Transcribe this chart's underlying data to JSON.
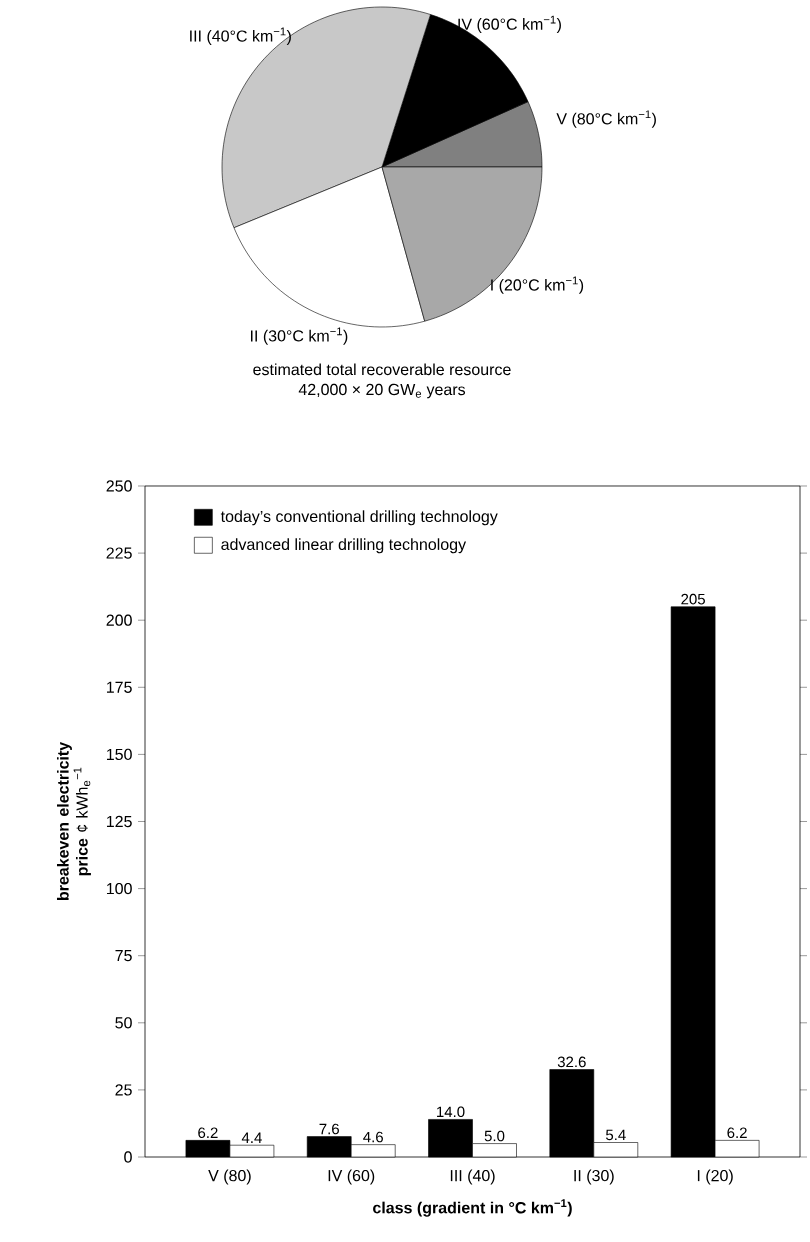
{
  "chart_data": [
    {
      "type": "pie",
      "title": "estimated total recoverable resource",
      "subtitle": "42,000 × 20 GW$_{e}$ years",
      "categories": [
        "V (80°C km$^{−1}$)",
        "IV (60°C km$^{−1}$)",
        "III (40°C km$^{−1}$)",
        "II (30°C km$^{−1}$)",
        "I (20°C km$^{−1}$)"
      ],
      "values": [
        6.7,
        13.4,
        36.1,
        23.1,
        20.7
      ],
      "colors": [
        "#808080",
        "#000000",
        "#c8c8c8",
        "#ffffff",
        "#a8a8a8"
      ]
    },
    {
      "type": "bar",
      "xlabel": "class (gradient in °C  km$^{−1}$)",
      "ylabel": "**breakeven electricity price** ¢ kWh$_{e}$$^{−1}$",
      "categories": [
        "V (80)",
        "IV (60)",
        "III (40)",
        "II (30)",
        "I (20)"
      ],
      "series": [
        {
          "name": "today’s conventional drilling technology",
          "color": "#000000",
          "values": [
            6.2,
            7.6,
            14.0,
            32.6,
            205
          ],
          "value_labels": [
            "6.2",
            "7.6",
            "14.0",
            "32.6",
            "205"
          ]
        },
        {
          "name": "advanced linear drilling technology",
          "color": "#ffffff",
          "values": [
            4.4,
            4.6,
            5.0,
            5.4,
            6.2
          ],
          "value_labels": [
            "4.4",
            "4.6",
            "5.0",
            "5.4",
            "6.2"
          ]
        }
      ],
      "ylim": [
        0,
        250
      ],
      "yticks": [
        0,
        25,
        50,
        75,
        100,
        125,
        150,
        175,
        200,
        225,
        250
      ],
      "legend": "top left"
    }
  ]
}
